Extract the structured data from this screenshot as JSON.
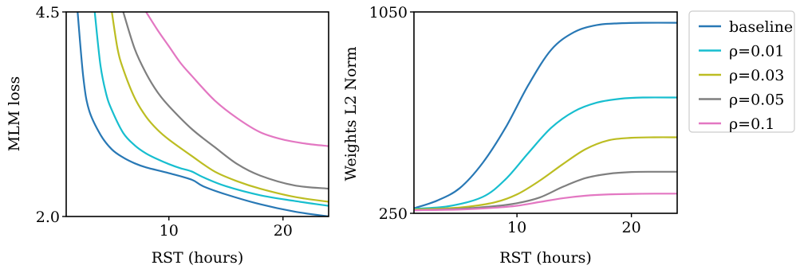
{
  "chart_data": [
    {
      "type": "line",
      "xlabel": "RST (hours)",
      "ylabel": "MLM loss",
      "xlim": [
        1,
        24
      ],
      "ylim": [
        2.0,
        4.5
      ],
      "xticks": [
        10,
        20
      ],
      "xtick_labels": [
        "10",
        "20"
      ],
      "yticks": [
        2.0,
        4.5
      ],
      "ytick_labels": [
        "2.0",
        "4.5"
      ],
      "series": [
        {
          "name": "baseline",
          "color": "#2878b5",
          "x": [
            2.0,
            2.5,
            3,
            4,
            5,
            6,
            7,
            8,
            10,
            12,
            13,
            15,
            18,
            21,
            24
          ],
          "y": [
            4.5,
            3.7,
            3.3,
            3.0,
            2.82,
            2.72,
            2.65,
            2.6,
            2.53,
            2.45,
            2.37,
            2.27,
            2.15,
            2.06,
            2.0
          ]
        },
        {
          "name": "ρ=0.01",
          "color": "#17becf",
          "x": [
            3.5,
            4,
            4.5,
            5,
            6,
            7,
            8,
            9,
            10,
            11,
            12,
            13,
            15,
            18,
            21,
            24
          ],
          "y": [
            4.5,
            3.85,
            3.5,
            3.3,
            3.02,
            2.87,
            2.77,
            2.7,
            2.64,
            2.59,
            2.55,
            2.48,
            2.37,
            2.26,
            2.19,
            2.13
          ]
        },
        {
          "name": "ρ=0.03",
          "color": "#bcbd22",
          "x": [
            5.0,
            5.5,
            6,
            7,
            8,
            9,
            10,
            12,
            14,
            16,
            18,
            21,
            24
          ],
          "y": [
            4.5,
            4.05,
            3.8,
            3.45,
            3.22,
            3.06,
            2.94,
            2.74,
            2.55,
            2.43,
            2.34,
            2.24,
            2.18
          ]
        },
        {
          "name": "ρ=0.05",
          "color": "#7f7f7f",
          "x": [
            6.0,
            7,
            8,
            9,
            10,
            12,
            14,
            16,
            18,
            21,
            24
          ],
          "y": [
            4.5,
            4.05,
            3.75,
            3.52,
            3.35,
            3.07,
            2.85,
            2.64,
            2.5,
            2.38,
            2.34
          ]
        },
        {
          "name": "ρ=0.1",
          "color": "#e377c2",
          "x": [
            8.0,
            9,
            10,
            11,
            12,
            14,
            16,
            18,
            20,
            22,
            24
          ],
          "y": [
            4.5,
            4.28,
            4.08,
            3.88,
            3.72,
            3.42,
            3.2,
            3.03,
            2.94,
            2.89,
            2.86
          ]
        }
      ]
    },
    {
      "type": "line",
      "xlabel": "RST (hours)",
      "ylabel": "Weights L2 Norm",
      "xlim": [
        1,
        24
      ],
      "ylim": [
        250,
        1050
      ],
      "xticks": [
        10,
        20
      ],
      "xtick_labels": [
        "10",
        "20"
      ],
      "yticks": [
        250,
        1050
      ],
      "ytick_labels": [
        "250",
        "1050"
      ],
      "series": [
        {
          "name": "baseline",
          "color": "#2878b5",
          "x": [
            1,
            3,
            5,
            7,
            9,
            11,
            13,
            15,
            17,
            19,
            21,
            24
          ],
          "y": [
            270,
            300,
            350,
            450,
            590,
            760,
            900,
            970,
            998,
            1005,
            1007,
            1007
          ]
        },
        {
          "name": "ρ=0.01",
          "color": "#17becf",
          "x": [
            1,
            4,
            7,
            9,
            11,
            13,
            15,
            17,
            19,
            21,
            24
          ],
          "y": [
            268,
            278,
            315,
            385,
            490,
            590,
            655,
            690,
            705,
            710,
            710
          ]
        },
        {
          "name": "ρ=0.03",
          "color": "#bcbd22",
          "x": [
            1,
            5,
            8,
            10,
            12,
            14,
            16,
            18,
            20,
            22,
            24
          ],
          "y": [
            265,
            273,
            293,
            325,
            380,
            445,
            505,
            540,
            550,
            552,
            552
          ]
        },
        {
          "name": "ρ=0.05",
          "color": "#7f7f7f",
          "x": [
            1,
            5,
            8,
            10,
            12,
            14,
            16,
            18,
            20,
            22,
            24
          ],
          "y": [
            262,
            268,
            278,
            290,
            313,
            355,
            390,
            407,
            414,
            415,
            415
          ]
        },
        {
          "name": "ρ=0.1",
          "color": "#e377c2",
          "x": [
            1,
            5,
            8,
            10,
            12,
            14,
            16,
            18,
            20,
            22,
            24
          ],
          "y": [
            262,
            265,
            272,
            280,
            295,
            310,
            320,
            325,
            327,
            328,
            328
          ]
        }
      ]
    }
  ],
  "legend": {
    "placement": "right",
    "entries": [
      {
        "label": "baseline",
        "color": "#2878b5"
      },
      {
        "label": "ρ=0.01",
        "color": "#17becf"
      },
      {
        "label": "ρ=0.03",
        "color": "#bcbd22"
      },
      {
        "label": "ρ=0.05",
        "color": "#7f7f7f"
      },
      {
        "label": "ρ=0.1",
        "color": "#e377c2"
      }
    ]
  }
}
